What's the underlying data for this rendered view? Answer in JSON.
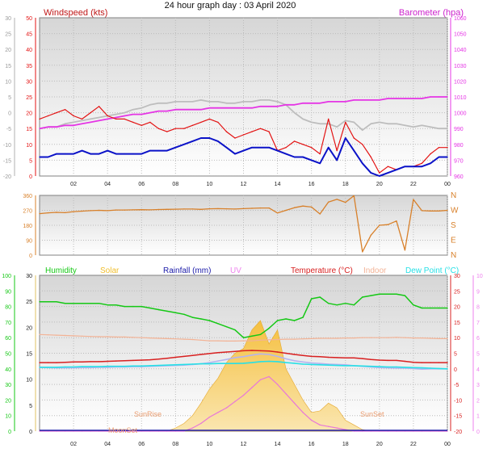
{
  "title": "24 hour graph day : 03 April 2020",
  "colors": {
    "windspeed": "#e31212",
    "wind_avg": "#0b12c8",
    "barometer": "#e535e5",
    "baro_gray": "#bdbdbd",
    "direction": "#d8802a",
    "humidity": "#15c815",
    "solar": "#f0be2c",
    "rainfall": "#1a1aa8",
    "uv": "#ee82ee",
    "temperature": "#d82020",
    "indoor": "#f3b396",
    "dewpoint": "#26e0e6",
    "grid": "#bcbcbc"
  },
  "chart_data": [
    {
      "type": "line",
      "panel": "wind-baro",
      "x_ticks": [
        "02",
        "04",
        "06",
        "08",
        "10",
        "12",
        "14",
        "16",
        "18",
        "20",
        "22",
        "00"
      ],
      "left_outer_axis": {
        "ticks": [
          "30",
          "25",
          "20",
          "15",
          "10",
          "5",
          "0",
          "-5",
          "-10",
          "-15",
          "-20"
        ],
        "ylim": [
          -20,
          30
        ]
      },
      "left_axis": {
        "label": "Windspeed (kts)",
        "ticks": [
          "50",
          "45",
          "40",
          "35",
          "30",
          "25",
          "20",
          "15",
          "10",
          "5",
          "0"
        ],
        "ylim": [
          0,
          50
        ]
      },
      "right_axis": {
        "label": "Barometer (hpa)",
        "ticks": [
          "1060",
          "1050",
          "1040",
          "1030",
          "1020",
          "1010",
          "1000",
          "990",
          "980",
          "970",
          "960"
        ],
        "ylim": [
          960,
          1060
        ]
      },
      "x": [
        0,
        0.5,
        1,
        1.5,
        2,
        2.5,
        3,
        3.5,
        4,
        4.5,
        5,
        5.5,
        6,
        6.5,
        7,
        7.5,
        8,
        8.5,
        9,
        9.5,
        10,
        10.5,
        11,
        11.5,
        12,
        12.5,
        13,
        13.5,
        14,
        14.5,
        15,
        15.5,
        16,
        16.5,
        17,
        17.5,
        18,
        18.5,
        19,
        19.5,
        20,
        20.5,
        21,
        21.5,
        22,
        22.5,
        23,
        23.5,
        24
      ],
      "series": [
        {
          "key": "wind_gust",
          "values": [
            18,
            19,
            20,
            21,
            19,
            18,
            20,
            22,
            19,
            18,
            18,
            17,
            16,
            17,
            15,
            14,
            15,
            15,
            16,
            17,
            18,
            17,
            14,
            12,
            13,
            14,
            15,
            14,
            8,
            9,
            11,
            10,
            9,
            7,
            18,
            8,
            17,
            12,
            10,
            6,
            1,
            3,
            2,
            3,
            3,
            4,
            7,
            9,
            9
          ]
        },
        {
          "key": "wind_avg",
          "values": [
            6,
            6,
            7,
            7,
            7,
            8,
            7,
            7,
            8,
            7,
            7,
            7,
            7,
            8,
            8,
            8,
            9,
            10,
            11,
            12,
            12,
            11,
            9,
            7,
            8,
            9,
            9,
            9,
            8,
            7,
            6,
            6,
            5,
            4,
            9,
            5,
            12,
            8,
            4,
            1,
            0,
            1,
            2,
            3,
            3,
            3,
            4,
            6,
            6
          ]
        },
        {
          "key": "baro_gray",
          "values": [
            990,
            991,
            991,
            993,
            994,
            995,
            996,
            997,
            998,
            999,
            1000,
            1002,
            1003,
            1005,
            1006,
            1006,
            1007,
            1007,
            1007,
            1008,
            1007,
            1007,
            1006,
            1006,
            1007,
            1007,
            1008,
            1008,
            1007,
            1005,
            1000,
            996,
            994,
            993,
            993,
            991,
            995,
            994,
            989,
            993,
            994,
            993,
            993,
            992,
            991,
            992,
            991,
            990,
            990
          ]
        },
        {
          "key": "barometer",
          "values": [
            990,
            991,
            991,
            992,
            992,
            993,
            994,
            995,
            996,
            997,
            998,
            999,
            999,
            1000,
            1001,
            1001,
            1002,
            1002,
            1002,
            1002,
            1003,
            1003,
            1003,
            1003,
            1003,
            1003,
            1004,
            1004,
            1004,
            1005,
            1005,
            1006,
            1006,
            1006,
            1007,
            1007,
            1007,
            1008,
            1008,
            1008,
            1008,
            1009,
            1009,
            1009,
            1009,
            1009,
            1010,
            1010,
            1010
          ]
        }
      ]
    },
    {
      "type": "line",
      "panel": "direction",
      "left_axis": {
        "ticks": [
          "360",
          "270",
          "180",
          "90",
          "0"
        ],
        "ylim": [
          0,
          360
        ]
      },
      "right_axis": {
        "ticks": [
          "N",
          "W",
          "S",
          "E",
          "N"
        ]
      },
      "x": [
        0,
        0.5,
        1,
        1.5,
        2,
        2.5,
        3,
        3.5,
        4,
        4.5,
        5,
        5.5,
        6,
        6.5,
        7,
        7.5,
        8,
        8.5,
        9,
        9.5,
        10,
        10.5,
        11,
        11.5,
        12,
        12.5,
        13,
        13.5,
        14,
        14.5,
        15,
        15.5,
        16,
        16.5,
        17,
        17.5,
        18,
        18.5,
        19,
        19.5,
        20,
        20.5,
        21,
        21.5,
        22,
        22.5,
        23,
        23.5,
        24
      ],
      "series": [
        {
          "key": "direction",
          "values": [
            250,
            255,
            258,
            256,
            262,
            265,
            268,
            270,
            268,
            272,
            272,
            273,
            274,
            273,
            275,
            276,
            277,
            278,
            278,
            276,
            279,
            280,
            279,
            278,
            280,
            282,
            284,
            284,
            254,
            270,
            286,
            296,
            290,
            248,
            320,
            336,
            318,
            358,
            20,
            120,
            180,
            184,
            206,
            30,
            335,
            268,
            266,
            266,
            270
          ]
        }
      ]
    },
    {
      "type": "line",
      "panel": "humidity-temp",
      "legend": [
        "Humidity",
        "Solar",
        "Rainfall (mm)",
        "UV",
        "Temperature (°C)",
        "Indoor",
        "Dew Point (°C)"
      ],
      "left_outer_axis": {
        "ticks": [
          "100",
          "90",
          "80",
          "70",
          "60",
          "50",
          "40",
          "30",
          "20",
          "10",
          "0"
        ],
        "ylim": [
          0,
          100
        ]
      },
      "left_axis": {
        "ticks": [
          "30",
          "25",
          "20",
          "15",
          "10",
          "5",
          "0"
        ],
        "ylim": [
          0,
          30
        ]
      },
      "right_axis": {
        "ticks": [
          "30",
          "25",
          "20",
          "15",
          "10",
          "5",
          "0",
          "-5",
          "-10",
          "-15",
          "-20"
        ],
        "ylim": [
          -20,
          30
        ]
      },
      "right_outer_axis": {
        "ticks": [
          "10",
          "9",
          "8",
          "7",
          "6",
          "5",
          "4",
          "3",
          "2",
          "1",
          "0"
        ],
        "ylim": [
          0,
          10
        ]
      },
      "annotations": [
        "SunRise",
        "SunSet",
        "MoonSet"
      ],
      "x": [
        0,
        0.5,
        1,
        1.5,
        2,
        2.5,
        3,
        3.5,
        4,
        4.5,
        5,
        5.5,
        6,
        6.5,
        7,
        7.5,
        8,
        8.5,
        9,
        9.5,
        10,
        10.5,
        11,
        11.5,
        12,
        12.5,
        13,
        13.5,
        14,
        14.5,
        15,
        15.5,
        16,
        16.5,
        17,
        17.5,
        18,
        18.5,
        19,
        19.5,
        20,
        20.5,
        21,
        21.5,
        22,
        22.5,
        23,
        23.5,
        24
      ],
      "series": [
        {
          "key": "humidity",
          "values": [
            83,
            83,
            83,
            82,
            82,
            82,
            82,
            82,
            81,
            81,
            80,
            80,
            80,
            79,
            78,
            77,
            76,
            75,
            73,
            72,
            71,
            69,
            67,
            65,
            60,
            61,
            62,
            66,
            71,
            72,
            71,
            73,
            85,
            86,
            82,
            81,
            82,
            81,
            86,
            87,
            88,
            88,
            88,
            87,
            81,
            79,
            79,
            79,
            79
          ]
        },
        {
          "key": "temperature",
          "values": [
            2,
            2,
            2,
            2.1,
            2.2,
            2.2,
            2.3,
            2.3,
            2.4,
            2.5,
            2.6,
            2.7,
            2.8,
            2.9,
            3.1,
            3.4,
            3.7,
            4.0,
            4.3,
            4.6,
            4.9,
            5.2,
            5.4,
            5.6,
            5.8,
            5.9,
            5.8,
            5.7,
            5.4,
            5.0,
            4.6,
            4.3,
            4.0,
            3.9,
            3.7,
            3.6,
            3.5,
            3.5,
            3.3,
            3.0,
            2.8,
            2.7,
            2.7,
            2.4,
            2.1,
            2.0,
            2.0,
            2.0,
            2.0
          ]
        },
        {
          "key": "indoor",
          "values": [
            11,
            10.9,
            10.8,
            10.7,
            10.6,
            10.5,
            10.4,
            10.3,
            10.3,
            10.2,
            10.2,
            10.1,
            10.0,
            9.9,
            9.8,
            9.7,
            9.6,
            9.5,
            9.4,
            9.2,
            9.0,
            9.0,
            8.9,
            8.9,
            9.0,
            9.0,
            9.2,
            9.3,
            9.4,
            9.5,
            9.5,
            9.6,
            9.7,
            9.8,
            9.8,
            9.8,
            9.9,
            9.9,
            10.0,
            10.0,
            10.0,
            10.0,
            10.1,
            10.0,
            9.9,
            9.9,
            9.8,
            9.7,
            9.7
          ]
        },
        {
          "key": "dewpoint",
          "values": [
            0.5,
            0.5,
            0.5,
            0.6,
            0.6,
            0.7,
            0.7,
            0.7,
            0.8,
            0.8,
            0.8,
            0.9,
            0.9,
            1.0,
            1.1,
            1.2,
            1.3,
            1.4,
            1.5,
            1.6,
            1.6,
            1.7,
            1.7,
            1.7,
            1.8,
            2.0,
            2.3,
            2.4,
            2.3,
            2.0,
            1.8,
            1.5,
            1.4,
            1.3,
            1.2,
            1.1,
            1.0,
            1.0,
            0.9,
            0.8,
            0.7,
            0.6,
            0.6,
            0.5,
            0.4,
            0.3,
            0.2,
            0.1,
            0
          ]
        },
        {
          "key": "uv",
          "values": [
            0.5,
            0.4,
            0.3,
            0.3,
            0.3,
            0.4,
            0.4,
            0.5,
            0.5,
            0.6,
            0.6,
            0.7,
            0.7,
            0.8,
            0.9,
            1.0,
            1.1,
            1.2,
            1.4,
            1.6,
            2.0,
            2.5,
            3.0,
            3.6,
            3.9,
            4.4,
            4.8,
            4.6,
            4.0,
            3.2,
            2.6,
            2.2,
            1.9,
            1.7,
            1.5,
            1.4,
            1.3,
            1.0,
            0.8,
            0.6,
            0.4,
            0.3,
            0.2,
            0.2,
            0.1,
            -0.1,
            0,
            0,
            0
          ]
        },
        {
          "key": "solar",
          "values": [
            0,
            0,
            0,
            0,
            0,
            0,
            0,
            0,
            0,
            0,
            0,
            0,
            0,
            0,
            0,
            0,
            0.2,
            0.5,
            1.0,
            1.8,
            2.7,
            3.4,
            4.4,
            5.0,
            5.3,
            6.5,
            7.1,
            5.6,
            6.5,
            4.0,
            3.0,
            2.0,
            1.2,
            1.3,
            1.8,
            1.5,
            0.7,
            0.4,
            0.1,
            0,
            0,
            0,
            0,
            0,
            0,
            0,
            0,
            0,
            0
          ]
        },
        {
          "key": "uv_index",
          "values": [
            0,
            0,
            0,
            0,
            0,
            0,
            0,
            0,
            0,
            0,
            0,
            0,
            0,
            0,
            0,
            0,
            0,
            0,
            0.2,
            0.5,
            0.9,
            1.2,
            1.5,
            1.9,
            2.3,
            2.8,
            3.3,
            3.5,
            3.0,
            2.4,
            1.8,
            1.2,
            0.7,
            0.4,
            0.3,
            0.2,
            0.1,
            0,
            0,
            0,
            0,
            0,
            0,
            0,
            0,
            0,
            0,
            0,
            0
          ]
        }
      ]
    }
  ],
  "x_tick_labels": [
    "02",
    "04",
    "06",
    "08",
    "10",
    "12",
    "14",
    "16",
    "18",
    "20",
    "22",
    "00"
  ]
}
